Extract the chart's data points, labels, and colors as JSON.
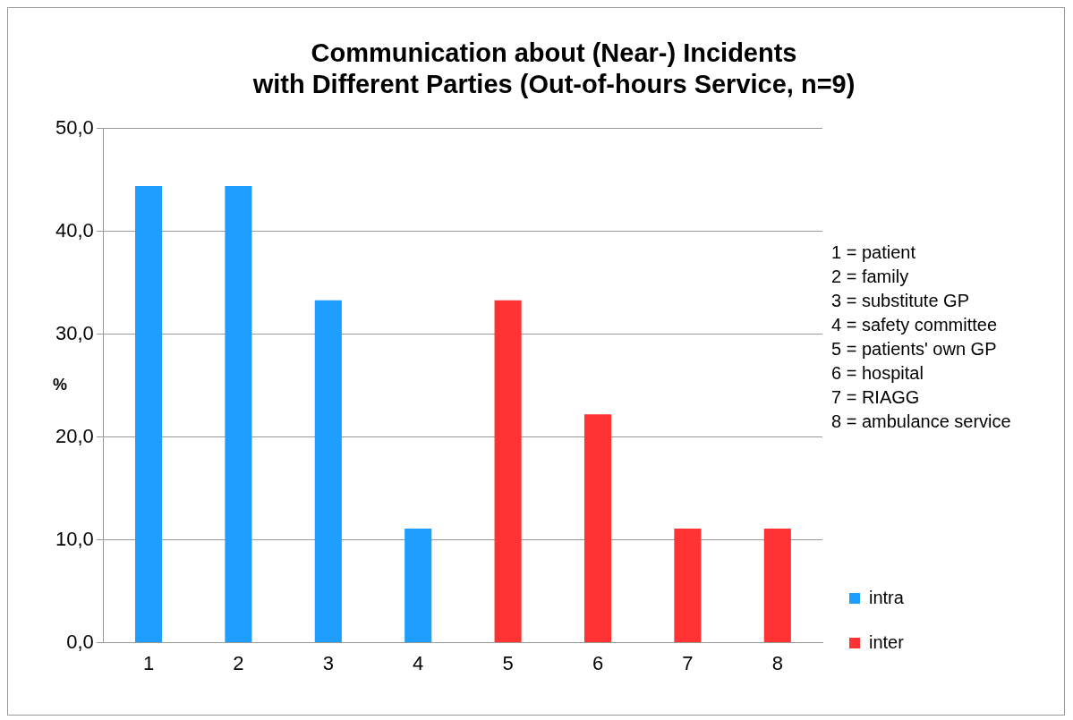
{
  "chart_data": {
    "type": "bar",
    "title": "Communication about (Near-) Incidents\nwith Different Parties (Out-of-hours Service, n=9)",
    "ylabel": "%",
    "categories": [
      "1",
      "2",
      "3",
      "4",
      "5",
      "6",
      "7",
      "8"
    ],
    "series": [
      {
        "name": "intra",
        "color": "#1e9fff",
        "values": [
          44.4,
          44.4,
          33.3,
          11.1,
          null,
          null,
          null,
          null
        ]
      },
      {
        "name": "inter",
        "color": "#ff3333",
        "values": [
          null,
          null,
          null,
          null,
          33.3,
          22.2,
          11.1,
          11.1
        ]
      }
    ],
    "ylim": [
      0,
      50
    ],
    "yticks": [
      {
        "value": 0,
        "label": "0,0"
      },
      {
        "value": 10,
        "label": "10,0"
      },
      {
        "value": 20,
        "label": "20,0"
      },
      {
        "value": 30,
        "label": "30,0"
      },
      {
        "value": 40,
        "label": "40,0"
      },
      {
        "value": 50,
        "label": "50,0"
      }
    ],
    "grid": "y",
    "legend": "right",
    "annotations": [
      "1 = patient",
      "2 = family",
      "3 = substitute GP",
      "4 = safety committee",
      "5 = patients' own GP",
      "6 = hospital",
      "7 = RIAGG",
      "8 = ambulance service"
    ]
  }
}
